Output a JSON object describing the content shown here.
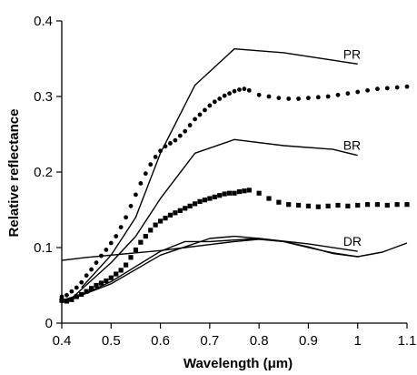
{
  "chart_data": {
    "type": "line",
    "xlabel": "Wavelength (μm)",
    "ylabel": "Relative reflectance",
    "xlim": [
      0.4,
      1.1
    ],
    "ylim": [
      0,
      0.4
    ],
    "xticks": [
      "0.4",
      "0.5",
      "0.6",
      "0.7",
      "0.8",
      "0.9",
      "1",
      "1.1"
    ],
    "yticks": [
      "0",
      "0.1",
      "0.2",
      "0.3",
      "0.4"
    ],
    "grid": false,
    "legend": "none",
    "series": [
      {
        "name": "PR",
        "style": "line",
        "x": [
          0.44,
          0.5,
          0.55,
          0.6,
          0.67,
          0.75,
          0.85,
          0.95,
          1.0
        ],
        "y": [
          0.047,
          0.09,
          0.14,
          0.225,
          0.315,
          0.363,
          0.358,
          0.348,
          0.343
        ]
      },
      {
        "name": "",
        "style": "dots",
        "x": [
          0.4,
          0.41,
          0.42,
          0.43,
          0.44,
          0.45,
          0.46,
          0.47,
          0.48,
          0.49,
          0.5,
          0.51,
          0.52,
          0.53,
          0.54,
          0.55,
          0.56,
          0.57,
          0.58,
          0.59,
          0.6,
          0.61,
          0.62,
          0.63,
          0.64,
          0.65,
          0.66,
          0.67,
          0.68,
          0.69,
          0.7,
          0.71,
          0.72,
          0.73,
          0.74,
          0.75,
          0.76,
          0.77,
          0.78,
          0.8,
          0.82,
          0.84,
          0.86,
          0.88,
          0.9,
          0.92,
          0.94,
          0.96,
          0.98,
          1.0,
          1.02,
          1.04,
          1.06,
          1.08,
          1.1
        ],
        "y": [
          0.035,
          0.037,
          0.042,
          0.047,
          0.054,
          0.063,
          0.071,
          0.08,
          0.089,
          0.097,
          0.106,
          0.115,
          0.127,
          0.14,
          0.155,
          0.17,
          0.185,
          0.198,
          0.21,
          0.22,
          0.228,
          0.234,
          0.238,
          0.242,
          0.248,
          0.254,
          0.262,
          0.27,
          0.276,
          0.282,
          0.288,
          0.293,
          0.297,
          0.301,
          0.304,
          0.307,
          0.309,
          0.31,
          0.308,
          0.302,
          0.3,
          0.298,
          0.297,
          0.297,
          0.298,
          0.299,
          0.3,
          0.302,
          0.304,
          0.306,
          0.308,
          0.31,
          0.311,
          0.312,
          0.313
        ]
      },
      {
        "name": "BR",
        "style": "line",
        "x": [
          0.42,
          0.5,
          0.55,
          0.6,
          0.67,
          0.75,
          0.85,
          0.95,
          1.0
        ],
        "y": [
          0.033,
          0.08,
          0.115,
          0.165,
          0.225,
          0.243,
          0.235,
          0.23,
          0.222
        ]
      },
      {
        "name": "",
        "style": "squares",
        "x": [
          0.4,
          0.41,
          0.42,
          0.43,
          0.44,
          0.45,
          0.46,
          0.47,
          0.48,
          0.49,
          0.5,
          0.51,
          0.52,
          0.53,
          0.54,
          0.55,
          0.56,
          0.57,
          0.58,
          0.59,
          0.6,
          0.61,
          0.62,
          0.63,
          0.64,
          0.65,
          0.66,
          0.67,
          0.68,
          0.69,
          0.7,
          0.71,
          0.72,
          0.73,
          0.74,
          0.75,
          0.76,
          0.77,
          0.78,
          0.8,
          0.82,
          0.84,
          0.86,
          0.88,
          0.9,
          0.92,
          0.94,
          0.96,
          0.98,
          1.0,
          1.02,
          1.04,
          1.06,
          1.08,
          1.1
        ],
        "y": [
          0.03,
          0.029,
          0.031,
          0.035,
          0.038,
          0.042,
          0.046,
          0.05,
          0.053,
          0.056,
          0.06,
          0.065,
          0.07,
          0.077,
          0.087,
          0.097,
          0.107,
          0.115,
          0.123,
          0.13,
          0.135,
          0.139,
          0.143,
          0.146,
          0.149,
          0.152,
          0.155,
          0.158,
          0.161,
          0.163,
          0.165,
          0.167,
          0.169,
          0.171,
          0.172,
          0.172,
          0.174,
          0.175,
          0.176,
          0.172,
          0.165,
          0.16,
          0.157,
          0.156,
          0.155,
          0.154,
          0.155,
          0.156,
          0.155,
          0.156,
          0.157,
          0.157,
          0.156,
          0.157,
          0.157
        ]
      },
      {
        "name": "DR",
        "style": "line",
        "x": [
          0.4,
          0.5,
          0.6,
          0.7,
          0.75,
          0.8,
          0.9,
          1.0
        ],
        "y": [
          0.027,
          0.052,
          0.09,
          0.112,
          0.115,
          0.112,
          0.105,
          0.095
        ]
      },
      {
        "name": "",
        "style": "line",
        "x": [
          0.4,
          0.45,
          0.5,
          0.55,
          0.6,
          0.65,
          0.7,
          0.75,
          0.8,
          0.85,
          0.9,
          0.95,
          1.0,
          1.05,
          1.1
        ],
        "y": [
          0.083,
          0.087,
          0.09,
          0.093,
          0.096,
          0.1,
          0.104,
          0.108,
          0.111,
          0.108,
          0.101,
          0.092,
          0.088,
          0.094,
          0.106
        ]
      },
      {
        "name": "",
        "style": "line",
        "x": [
          0.4,
          0.45,
          0.5,
          0.55,
          0.6,
          0.65,
          0.7,
          0.75,
          0.8,
          0.85,
          0.9,
          0.95,
          1.0
        ],
        "y": [
          0.03,
          0.04,
          0.055,
          0.075,
          0.095,
          0.108,
          0.108,
          0.11,
          0.112,
          0.108,
          0.1,
          0.093,
          0.088
        ]
      }
    ]
  }
}
